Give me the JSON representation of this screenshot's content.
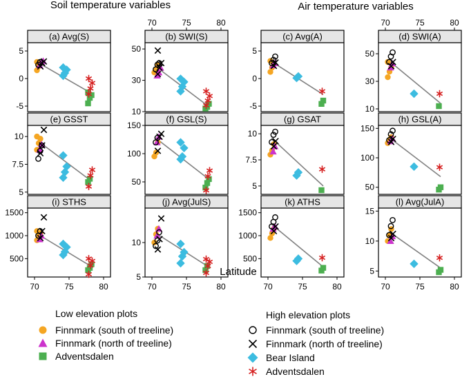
{
  "figure": {
    "heading_left": "Soil temperature variables",
    "heading_right": "Air temperature variables",
    "xlabel": "Latitude"
  },
  "legend": {
    "low_title": "Low elevation plots",
    "high_title": "High elevation plots",
    "low_items": [
      {
        "label": "Finnmark (south of treeline)",
        "marker": "circle",
        "color": "#F5A623"
      },
      {
        "label": "Finnmark (north of treeline)",
        "marker": "triangle",
        "color": "#CC33CC"
      },
      {
        "label": "Adventsdalen",
        "marker": "square",
        "color": "#4CAF50"
      }
    ],
    "high_items": [
      {
        "label": "Finnmark (south of treeline)",
        "marker": "open-circle",
        "color": "#000000"
      },
      {
        "label": "Finnmark (north of treeline)",
        "marker": "x",
        "color": "#000000"
      },
      {
        "label": "Bear Island",
        "marker": "diamond",
        "color": "#3CBCE0"
      },
      {
        "label": "Adventsdalen",
        "marker": "asterisk",
        "color": "#D62020"
      }
    ]
  },
  "chart_data": [
    {
      "type": "scatter",
      "title": "(a) Avg(S)",
      "xlim": [
        69,
        81
      ],
      "ylim": [
        -6,
        6.5
      ],
      "xticks": [
        70,
        75,
        80
      ],
      "yticks": [
        -5,
        0,
        5
      ],
      "trend": [
        [
          70.5,
          2.9
        ],
        [
          78,
          -2.5
        ]
      ],
      "series": [
        {
          "group": "low-south",
          "y": [
            1.5,
            2.2,
            2.8,
            3.0
          ]
        },
        {
          "group": "low-north",
          "y": [
            2.4,
            3.0,
            3.2
          ]
        },
        {
          "group": "low-adv",
          "y": [
            -4.5,
            -3.5,
            -3.0,
            -2.5
          ]
        },
        {
          "group": "high-south",
          "y": [
            2.5,
            3.0
          ]
        },
        {
          "group": "high-north",
          "y": [
            2.2,
            2.8,
            3.1
          ]
        },
        {
          "group": "bear",
          "y": [
            0.5,
            1.0,
            1.6,
            2.0
          ]
        },
        {
          "group": "high-adv",
          "y": [
            -2.8,
            -1.8,
            -0.8,
            0.0
          ]
        }
      ]
    },
    {
      "type": "scatter",
      "title": "(b) SWI(S)",
      "xlim": [
        69,
        81
      ],
      "ylim": [
        10,
        54
      ],
      "xticks": [
        70,
        75,
        80
      ],
      "yticks": [
        10,
        30,
        50
      ],
      "trend": [
        [
          70.5,
          39
        ],
        [
          78,
          14
        ]
      ],
      "series": [
        {
          "group": "low-south",
          "y": [
            35,
            37,
            40
          ]
        },
        {
          "group": "low-north",
          "y": [
            33,
            35,
            38
          ]
        },
        {
          "group": "low-adv",
          "y": [
            12,
            13,
            15
          ]
        },
        {
          "group": "high-south",
          "y": [
            37,
            40,
            41
          ]
        },
        {
          "group": "high-north",
          "y": [
            34,
            38,
            41,
            49
          ]
        },
        {
          "group": "bear",
          "y": [
            23,
            26,
            29,
            31
          ]
        },
        {
          "group": "high-adv",
          "y": [
            14,
            17,
            20,
            23
          ]
        }
      ]
    },
    {
      "type": "scatter",
      "title": "(c) Avg(A)",
      "xlim": [
        69,
        81
      ],
      "ylim": [
        -6,
        6.5
      ],
      "xticks": [
        70,
        75,
        80
      ],
      "yticks": [
        -5,
        0,
        5
      ],
      "trend": [
        [
          70.5,
          3.1
        ],
        [
          78,
          -2.9
        ]
      ],
      "series": [
        {
          "group": "low-south",
          "y": [
            1.2,
            2.0,
            2.6,
            3.2
          ]
        },
        {
          "group": "low-north",
          "y": [
            2.4,
            2.8
          ]
        },
        {
          "group": "low-adv",
          "y": [
            -4.6,
            -4.0
          ]
        },
        {
          "group": "high-south",
          "y": [
            2.8,
            3.4,
            4.0
          ]
        },
        {
          "group": "high-north",
          "y": [
            2.3,
            2.9
          ]
        },
        {
          "group": "bear",
          "y": [
            0.1,
            0.4
          ]
        },
        {
          "group": "high-adv",
          "y": [
            -2.3
          ]
        }
      ]
    },
    {
      "type": "scatter",
      "title": "(d) SWI(A)",
      "xlim": [
        69,
        81
      ],
      "ylim": [
        8,
        58
      ],
      "xticks": [
        70,
        75,
        80
      ],
      "yticks": [
        10,
        30,
        50
      ],
      "trend": [
        [
          70.5,
          45
        ],
        [
          78,
          14
        ]
      ],
      "series": [
        {
          "group": "low-south",
          "y": [
            33,
            37,
            40,
            44
          ]
        },
        {
          "group": "low-north",
          "y": [
            40,
            43
          ]
        },
        {
          "group": "low-adv",
          "y": [
            12
          ]
        },
        {
          "group": "high-south",
          "y": [
            44,
            48,
            51
          ]
        },
        {
          "group": "high-north",
          "y": [
            41,
            44
          ]
        },
        {
          "group": "bear",
          "y": [
            21
          ]
        },
        {
          "group": "high-adv",
          "y": [
            21
          ]
        }
      ]
    },
    {
      "type": "scatter",
      "title": "(e) GSST",
      "xlim": [
        69,
        81
      ],
      "ylim": [
        4.8,
        11
      ],
      "xticks": [
        70,
        75,
        80
      ],
      "yticks": [
        5.0,
        7.5,
        10.0
      ],
      "trend": [
        [
          70.5,
          9.6
        ],
        [
          78,
          6.1
        ]
      ],
      "series": [
        {
          "group": "low-south",
          "y": [
            8.8,
            9.4,
            9.8,
            10.0
          ]
        },
        {
          "group": "low-north",
          "y": [
            8.8,
            9.3
          ]
        },
        {
          "group": "low-adv",
          "y": [
            5.9,
            6.2
          ]
        },
        {
          "group": "high-south",
          "y": [
            8.0,
            8.7,
            9.2
          ]
        },
        {
          "group": "high-north",
          "y": [
            8.5,
            9.2,
            10.6
          ]
        },
        {
          "group": "bear",
          "y": [
            6.3,
            6.8,
            7.3,
            8.3
          ]
        },
        {
          "group": "high-adv",
          "y": [
            5.5,
            6.5,
            7.0
          ]
        }
      ]
    },
    {
      "type": "scatter",
      "title": "(f) GSL(S)",
      "xlim": [
        69,
        81
      ],
      "ylim": [
        28,
        150
      ],
      "xticks": [
        70,
        75,
        80
      ],
      "yticks": [
        50,
        100,
        150
      ],
      "trend": [
        [
          70.5,
          128
        ],
        [
          78,
          57
        ]
      ],
      "series": [
        {
          "group": "low-south",
          "y": [
            95,
            102,
            120
          ]
        },
        {
          "group": "low-north",
          "y": [
            120,
            130
          ]
        },
        {
          "group": "low-adv",
          "y": [
            40,
            48,
            55
          ]
        },
        {
          "group": "high-south",
          "y": [
            120,
            128
          ]
        },
        {
          "group": "high-north",
          "y": [
            105,
            130,
            135
          ]
        },
        {
          "group": "bear",
          "y": [
            90,
            95,
            110,
            120
          ]
        },
        {
          "group": "high-adv",
          "y": [
            35,
            60,
            70
          ]
        }
      ]
    },
    {
      "type": "scatter",
      "title": "(g) GSAT",
      "xlim": [
        69,
        81
      ],
      "ylim": [
        4.2,
        10.8
      ],
      "xticks": [
        70,
        75,
        80
      ],
      "yticks": [
        5.0,
        7.5,
        10.0
      ],
      "trend": [
        [
          70.5,
          9.6
        ],
        [
          78,
          5.0
        ]
      ],
      "series": [
        {
          "group": "low-south",
          "y": [
            8.0,
            8.4,
            9.0
          ]
        },
        {
          "group": "low-north",
          "y": [
            8.3,
            8.8
          ]
        },
        {
          "group": "low-adv",
          "y": [
            4.6
          ]
        },
        {
          "group": "high-south",
          "y": [
            9.2,
            9.9,
            10.2
          ]
        },
        {
          "group": "high-north",
          "y": [
            8.8,
            9.3
          ]
        },
        {
          "group": "bear",
          "y": [
            6.0,
            6.3
          ]
        },
        {
          "group": "high-adv",
          "y": [
            6.6
          ]
        }
      ]
    },
    {
      "type": "scatter",
      "title": "(h) GSL(A)",
      "xlim": [
        69,
        81
      ],
      "ylim": [
        38,
        155
      ],
      "xticks": [
        70,
        75,
        80
      ],
      "yticks": [
        50,
        100,
        150
      ],
      "trend": [
        [
          70.5,
          135
        ],
        [
          78,
          68
        ]
      ],
      "series": [
        {
          "group": "low-south",
          "y": [
            125,
            130,
            135
          ]
        },
        {
          "group": "low-north",
          "y": [
            128,
            133
          ]
        },
        {
          "group": "low-adv",
          "y": [
            46,
            50
          ]
        },
        {
          "group": "high-south",
          "y": [
            130,
            140,
            146
          ]
        },
        {
          "group": "high-north",
          "y": [
            127,
            132
          ]
        },
        {
          "group": "bear",
          "y": [
            85
          ]
        },
        {
          "group": "high-adv",
          "y": [
            84
          ]
        }
      ]
    },
    {
      "type": "scatter",
      "title": "(i) STHS",
      "xlim": [
        69,
        81
      ],
      "ylim": [
        100,
        1600
      ],
      "xticks": [
        70,
        75,
        80
      ],
      "yticks": [
        500,
        1000,
        1500
      ],
      "trend": [
        [
          70.5,
          1030
        ],
        [
          78,
          350
        ]
      ],
      "series": [
        {
          "group": "low-south",
          "y": [
            900,
            980,
            1050,
            1100
          ]
        },
        {
          "group": "low-north",
          "y": [
            920,
            1000
          ]
        },
        {
          "group": "low-adv",
          "y": [
            250,
            300,
            380
          ]
        },
        {
          "group": "high-south",
          "y": [
            1000,
            1100
          ]
        },
        {
          "group": "high-north",
          "y": [
            950,
            1100,
            1400
          ]
        },
        {
          "group": "bear",
          "y": [
            580,
            650,
            750,
            820
          ]
        },
        {
          "group": "high-adv",
          "y": [
            160,
            350,
            450,
            500
          ]
        }
      ]
    },
    {
      "type": "scatter",
      "title": "(j) Avg(JulS)",
      "xlim": [
        69,
        81
      ],
      "ylim": [
        5,
        15
      ],
      "xticks": [
        70,
        75,
        80
      ],
      "yticks": [
        5,
        10
      ],
      "trend": [
        [
          70.5,
          11.4
        ],
        [
          78,
          6.6
        ]
      ],
      "series": [
        {
          "group": "low-south",
          "y": [
            10.0,
            11.2,
            12.0
          ]
        },
        {
          "group": "low-north",
          "y": [
            11.0,
            12.0
          ]
        },
        {
          "group": "low-adv",
          "y": [
            6.0,
            6.6
          ]
        },
        {
          "group": "high-south",
          "y": [
            9.5,
            10.3,
            11.5
          ]
        },
        {
          "group": "high-north",
          "y": [
            9.0,
            10.5,
            13.5
          ]
        },
        {
          "group": "bear",
          "y": [
            7.0,
            8.0,
            8.6,
            9.8
          ]
        },
        {
          "group": "high-adv",
          "y": [
            5.6,
            6.6,
            7.2,
            7.6
          ]
        }
      ]
    },
    {
      "type": "scatter",
      "title": "(k) ATHS",
      "xlim": [
        69,
        81
      ],
      "ylim": [
        100,
        1600
      ],
      "xticks": [
        70,
        75,
        80
      ],
      "yticks": [
        500,
        1000,
        1500
      ],
      "trend": [
        [
          70.5,
          1250
        ],
        [
          78,
          320
        ]
      ],
      "series": [
        {
          "group": "low-south",
          "y": [
            950,
            1050,
            1150
          ]
        },
        {
          "group": "low-north",
          "y": [
            1150,
            1200
          ]
        },
        {
          "group": "low-adv",
          "y": [
            240,
            300
          ]
        },
        {
          "group": "high-south",
          "y": [
            1200,
            1300,
            1400
          ]
        },
        {
          "group": "high-north",
          "y": [
            1100,
            1200
          ]
        },
        {
          "group": "bear",
          "y": [
            450,
            500
          ]
        },
        {
          "group": "high-adv",
          "y": [
            520
          ]
        }
      ]
    },
    {
      "type": "scatter",
      "title": "(l) Avg(JulA)",
      "xlim": [
        69,
        81
      ],
      "ylim": [
        4,
        15.5
      ],
      "xticks": [
        70,
        75,
        80
      ],
      "yticks": [
        5,
        10,
        15
      ],
      "trend": [
        [
          70.5,
          11.6
        ],
        [
          78,
          5.5
        ]
      ],
      "series": [
        {
          "group": "low-south",
          "y": [
            10.0,
            11.0,
            12.0
          ]
        },
        {
          "group": "low-north",
          "y": [
            10.0,
            10.8
          ]
        },
        {
          "group": "low-adv",
          "y": [
            4.8,
            5.2
          ]
        },
        {
          "group": "high-south",
          "y": [
            11.0,
            12.5,
            13.5
          ]
        },
        {
          "group": "high-north",
          "y": [
            10.5,
            11.2
          ]
        },
        {
          "group": "bear",
          "y": [
            6.2
          ]
        },
        {
          "group": "high-adv",
          "y": [
            7.2
          ]
        }
      ]
    }
  ]
}
